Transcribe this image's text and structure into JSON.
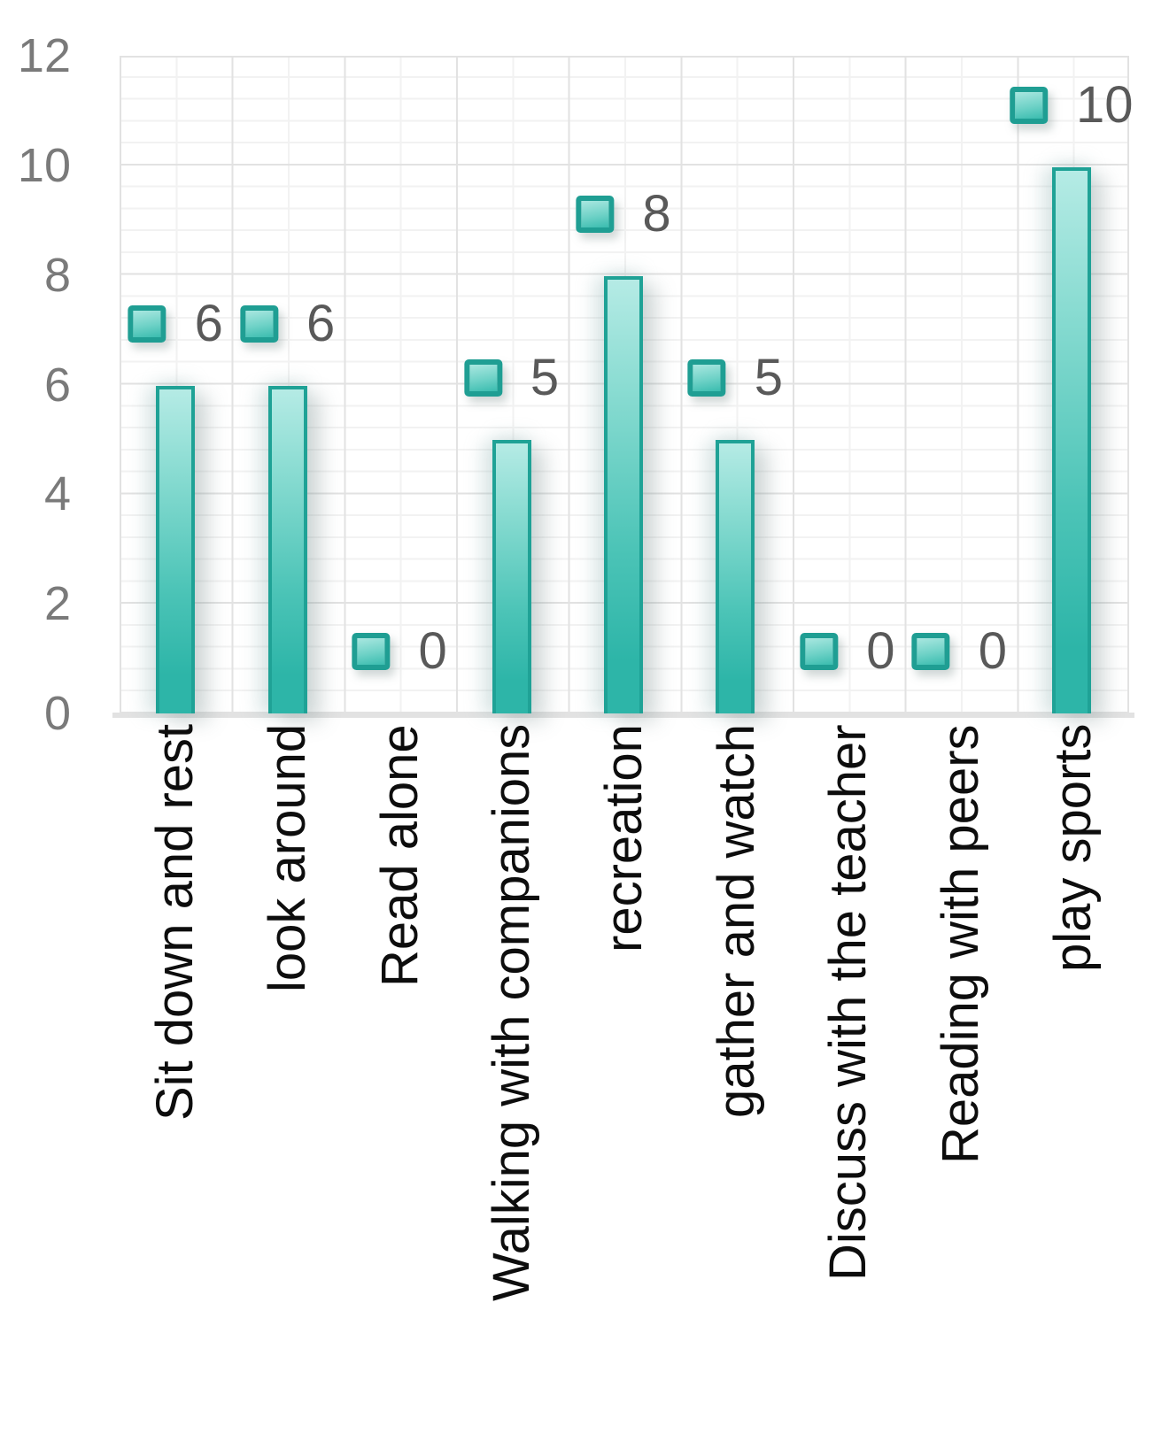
{
  "chart_data": {
    "type": "bar",
    "title": "",
    "xlabel": "",
    "ylabel": "",
    "categories": [
      "Sit down and rest",
      "look around",
      "Read alone",
      "Walking with companions",
      "recreation",
      "gather and watch",
      "Discuss with the teacher",
      "Reading with peers",
      "play sports"
    ],
    "values": [
      6,
      6,
      0,
      5,
      8,
      5,
      0,
      0,
      10
    ],
    "data_labels": [
      "6",
      "6",
      "0",
      "5",
      "8",
      "5",
      "0",
      "0",
      "10"
    ],
    "y_ticks": [
      "0",
      "2",
      "4",
      "6",
      "8",
      "10",
      "12"
    ],
    "ylim": [
      0,
      12
    ],
    "y_major_unit": 2,
    "y_minor_unit": 0.4,
    "grid": "horizontal and vertical, major plus minor gridlines",
    "legend_position": "none (legend key squares shown next to each data label)",
    "colors": {
      "bar_fill_light": "#b5ebe5",
      "bar_fill_dark": "#2db5a8",
      "bar_border": "#1fa296",
      "data_label_text": "#595959",
      "y_tick_text": "#7a7a7a",
      "category_text": "#0d0d0d",
      "gridline_major": "#e2e2e2",
      "gridline_minor": "#f2f2f2"
    }
  }
}
